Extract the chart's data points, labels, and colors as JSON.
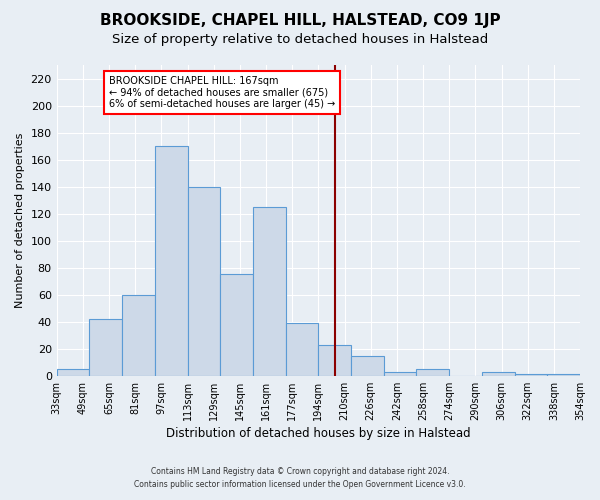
{
  "title": "BROOKSIDE, CHAPEL HILL, HALSTEAD, CO9 1JP",
  "subtitle": "Size of property relative to detached houses in Halstead",
  "xlabel": "Distribution of detached houses by size in Halstead",
  "ylabel": "Number of detached properties",
  "bar_values": [
    5,
    42,
    60,
    170,
    140,
    75,
    125,
    39,
    23,
    15,
    3,
    5,
    0,
    3,
    1,
    1
  ],
  "x_tick_labels": [
    "33sqm",
    "49sqm",
    "65sqm",
    "81sqm",
    "97sqm",
    "113sqm",
    "129sqm",
    "145sqm",
    "161sqm",
    "177sqm",
    "194sqm",
    "210sqm",
    "226sqm",
    "242sqm",
    "258sqm",
    "274sqm",
    "290sqm",
    "306sqm",
    "322sqm",
    "338sqm",
    "354sqm"
  ],
  "bar_color": "#cdd9e8",
  "bar_edge_color": "#5b9bd5",
  "background_color": "#e8eef4",
  "grid_color": "#ffffff",
  "red_line_bin": 8,
  "annotation_title": "BROOKSIDE CHAPEL HILL: 167sqm",
  "annotation_line1": "← 94% of detached houses are smaller (675)",
  "annotation_line2": "6% of semi-detached houses are larger (45) →",
  "ylim": [
    0,
    230
  ],
  "yticks": [
    0,
    20,
    40,
    60,
    80,
    100,
    120,
    140,
    160,
    180,
    200,
    220
  ],
  "title_fontsize": 11,
  "subtitle_fontsize": 9.5,
  "footnote1": "Contains HM Land Registry data © Crown copyright and database right 2024.",
  "footnote2": "Contains public sector information licensed under the Open Government Licence v3.0."
}
